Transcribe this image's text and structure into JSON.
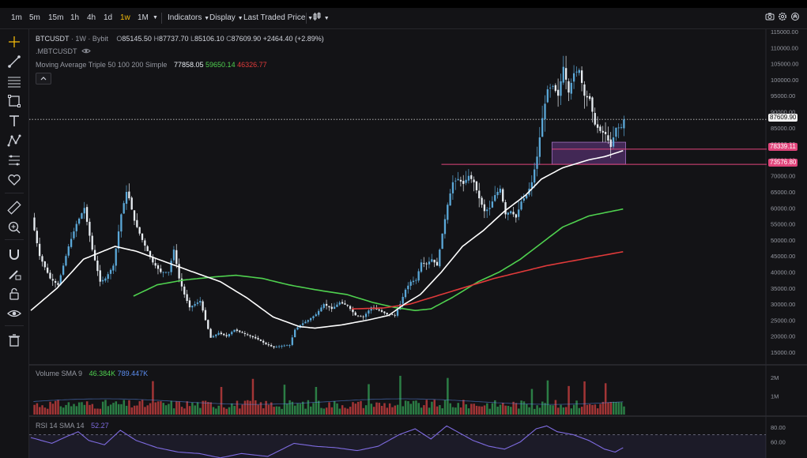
{
  "toolbar": {
    "intervals": [
      "1m",
      "5m",
      "15m",
      "1h",
      "4h",
      "1d",
      "1w",
      "1M"
    ],
    "active_interval": "1w",
    "indicators_label": "Indicators",
    "display_label": "Display",
    "price_source_label": "Last Traded Price"
  },
  "legend": {
    "symbol": "BTCUSDT",
    "interval": "1W",
    "exchange": "Bybit",
    "open_label": "O",
    "open": "85145.50",
    "high_label": "H",
    "high": "87737.70",
    "low_label": "L",
    "low": "85106.10",
    "close_label": "C",
    "close": "87609.90",
    "change": "+2464.40 (+2.89%)",
    "mark_symbol": ".MBTCUSDT",
    "ma_label": "Moving Average Triple 50 100 200 Simple",
    "ma50": "77858.05",
    "ma100": "59650.14",
    "ma200": "46326.77",
    "volume_label": "Volume SMA 9",
    "volume_v1": "46.384K",
    "volume_v2": "789.447K",
    "rsi_label": "RSI 14 SMA 14",
    "rsi_value": "52.27"
  },
  "colors": {
    "up": "#5ba8d8",
    "down": "#e8edf2",
    "ma50": "#ffffff",
    "ma100": "#4fd14f",
    "ma200": "#e03a3a",
    "zone": "#6a3a8a",
    "level": "#e0457b",
    "rsi": "#7e6be0"
  },
  "price_tags": {
    "last": "87609.90",
    "upper": "78339.11",
    "lower": "73576.80"
  },
  "chart_data": [
    {
      "type": "candlestick",
      "title": "BTCUSDT · 1W · Bybit",
      "ylim": [
        10000,
        115000
      ],
      "y_ticks": [
        15000,
        20000,
        25000,
        30000,
        35000,
        40000,
        45000,
        50000,
        55000,
        60000,
        65000,
        70000,
        75000,
        80000,
        85000,
        90000,
        95000,
        100000,
        105000,
        110000,
        115000
      ],
      "y_tick_labels": [
        "15000.00",
        "20000.00",
        "25000.00",
        "30000.00",
        "35000.00",
        "40000.00",
        "45000.00",
        "50000.00",
        "55000.00",
        "60000.00",
        "65000.00",
        "70000.00",
        "75000.00",
        "80000.00",
        "85000.00",
        "90000.00",
        "95000.00",
        "100000.00",
        "105000.00",
        "110000.00",
        "115000.00"
      ],
      "close_anchors": [
        [
          0,
          57000
        ],
        [
          3,
          45000
        ],
        [
          7,
          38000
        ],
        [
          10,
          36000
        ],
        [
          14,
          48000
        ],
        [
          17,
          55000
        ],
        [
          20,
          60000
        ],
        [
          23,
          47000
        ],
        [
          26,
          37000
        ],
        [
          28,
          38000
        ],
        [
          31,
          42000
        ],
        [
          34,
          58000
        ],
        [
          36,
          65000
        ],
        [
          37,
          63000
        ],
        [
          39,
          56000
        ],
        [
          42,
          50000
        ],
        [
          46,
          43000
        ],
        [
          49,
          40000
        ],
        [
          52,
          40000
        ],
        [
          54,
          47000
        ],
        [
          56,
          38000
        ],
        [
          58,
          33000
        ],
        [
          60,
          29000
        ],
        [
          62,
          30000
        ],
        [
          64,
          31000
        ],
        [
          66,
          25000
        ],
        [
          68,
          19500
        ],
        [
          71,
          21000
        ],
        [
          74,
          20000
        ],
        [
          77,
          22000
        ],
        [
          80,
          21000
        ],
        [
          83,
          20000
        ],
        [
          86,
          19000
        ],
        [
          89,
          17500
        ],
        [
          92,
          16500
        ],
        [
          95,
          17000
        ],
        [
          98,
          17200
        ],
        [
          100,
          22000
        ],
        [
          102,
          23500
        ],
        [
          105,
          25000
        ],
        [
          108,
          26800
        ],
        [
          111,
          30000
        ],
        [
          114,
          28500
        ],
        [
          117,
          30500
        ],
        [
          120,
          29500
        ],
        [
          123,
          26500
        ],
        [
          126,
          26000
        ],
        [
          129,
          29000
        ],
        [
          132,
          28000
        ],
        [
          135,
          26800
        ],
        [
          138,
          26500
        ],
        [
          140,
          30000
        ],
        [
          142,
          34500
        ],
        [
          144,
          37000
        ],
        [
          146,
          37500
        ],
        [
          148,
          43000
        ],
        [
          150,
          42500
        ],
        [
          152,
          44000
        ],
        [
          154,
          42000
        ],
        [
          156,
          52000
        ],
        [
          158,
          61000
        ],
        [
          160,
          68000
        ],
        [
          162,
          69000
        ],
        [
          164,
          67500
        ],
        [
          166,
          70000
        ],
        [
          168,
          68000
        ],
        [
          170,
          63000
        ],
        [
          172,
          59000
        ],
        [
          174,
          60000
        ],
        [
          176,
          64000
        ],
        [
          178,
          66000
        ],
        [
          180,
          58000
        ],
        [
          182,
          59000
        ],
        [
          184,
          57000
        ],
        [
          186,
          62000
        ],
        [
          188,
          64000
        ],
        [
          190,
          68000
        ],
        [
          192,
          76000
        ],
        [
          194,
          88000
        ],
        [
          196,
          97000
        ],
        [
          198,
          98000
        ],
        [
          200,
          95000
        ],
        [
          202,
          104000
        ],
        [
          204,
          96000
        ],
        [
          206,
          102000
        ],
        [
          208,
          103000
        ],
        [
          210,
          95000
        ],
        [
          212,
          94000
        ],
        [
          214,
          86000
        ],
        [
          216,
          84000
        ],
        [
          218,
          83000
        ],
        [
          220,
          79000
        ],
        [
          222,
          85000
        ],
        [
          224,
          85145
        ],
        [
          225,
          87610
        ]
      ],
      "ma50_anchors": [
        [
          0,
          28000
        ],
        [
          10,
          35000
        ],
        [
          20,
          44000
        ],
        [
          32,
          48000
        ],
        [
          40,
          46500
        ],
        [
          50,
          43500
        ],
        [
          60,
          40500
        ],
        [
          72,
          37000
        ],
        [
          82,
          32000
        ],
        [
          92,
          26000
        ],
        [
          102,
          23000
        ],
        [
          108,
          22500
        ],
        [
          118,
          23500
        ],
        [
          128,
          25000
        ],
        [
          136,
          26500
        ],
        [
          142,
          30000
        ],
        [
          148,
          33000
        ],
        [
          156,
          40000
        ],
        [
          164,
          48000
        ],
        [
          172,
          53000
        ],
        [
          180,
          59000
        ],
        [
          188,
          64000
        ],
        [
          194,
          69000
        ],
        [
          202,
          72500
        ],
        [
          212,
          75000
        ],
        [
          218,
          76000
        ],
        [
          225,
          77858
        ]
      ],
      "ma100_anchors": [
        [
          39,
          32500
        ],
        [
          48,
          36000
        ],
        [
          58,
          37500
        ],
        [
          70,
          38500
        ],
        [
          78,
          39000
        ],
        [
          88,
          38000
        ],
        [
          98,
          36000
        ],
        [
          108,
          34500
        ],
        [
          120,
          33000
        ],
        [
          130,
          30500
        ],
        [
          138,
          29000
        ],
        [
          146,
          28000
        ],
        [
          152,
          28500
        ],
        [
          160,
          32000
        ],
        [
          170,
          37000
        ],
        [
          178,
          40000
        ],
        [
          186,
          44000
        ],
        [
          194,
          49000
        ],
        [
          202,
          54000
        ],
        [
          212,
          57500
        ],
        [
          225,
          59650
        ]
      ],
      "ma200_anchors": [
        [
          122,
          28500
        ],
        [
          134,
          28800
        ],
        [
          144,
          30000
        ],
        [
          152,
          32000
        ],
        [
          164,
          35000
        ],
        [
          176,
          38000
        ],
        [
          186,
          40000
        ],
        [
          196,
          42000
        ],
        [
          206,
          43500
        ],
        [
          216,
          45000
        ],
        [
          225,
          46327
        ]
      ],
      "levels": [
        78339.11,
        73576.8
      ],
      "zone": {
        "from_bar": 198,
        "to_bar": 226,
        "low": 73576.8,
        "high": 80500
      }
    },
    {
      "type": "bar",
      "title": "Volume SMA 9",
      "y_ticks": [
        1000000,
        2000000
      ],
      "y_tick_labels": [
        "1M",
        "2M"
      ],
      "spike_bars": [
        46,
        72,
        84,
        96,
        108,
        128,
        140,
        158,
        190,
        196,
        204,
        210,
        218
      ]
    },
    {
      "type": "line",
      "title": "RSI 14 SMA 14",
      "y_ticks": [
        60,
        80
      ],
      "y_tick_labels": [
        "60.00",
        "80.00"
      ],
      "rsi_anchors": [
        [
          0,
          66
        ],
        [
          8,
          58
        ],
        [
          14,
          68
        ],
        [
          18,
          74
        ],
        [
          22,
          62
        ],
        [
          28,
          56
        ],
        [
          34,
          76
        ],
        [
          40,
          62
        ],
        [
          48,
          52
        ],
        [
          56,
          46
        ],
        [
          64,
          44
        ],
        [
          72,
          38
        ],
        [
          80,
          44
        ],
        [
          90,
          40
        ],
        [
          100,
          58
        ],
        [
          108,
          54
        ],
        [
          116,
          52
        ],
        [
          124,
          48
        ],
        [
          132,
          54
        ],
        [
          140,
          70
        ],
        [
          146,
          78
        ],
        [
          152,
          64
        ],
        [
          158,
          82
        ],
        [
          162,
          74
        ],
        [
          168,
          62
        ],
        [
          174,
          54
        ],
        [
          180,
          50
        ],
        [
          186,
          60
        ],
        [
          192,
          78
        ],
        [
          196,
          82
        ],
        [
          200,
          74
        ],
        [
          206,
          70
        ],
        [
          212,
          62
        ],
        [
          218,
          50
        ],
        [
          222,
          46
        ],
        [
          225,
          52
        ]
      ]
    }
  ]
}
